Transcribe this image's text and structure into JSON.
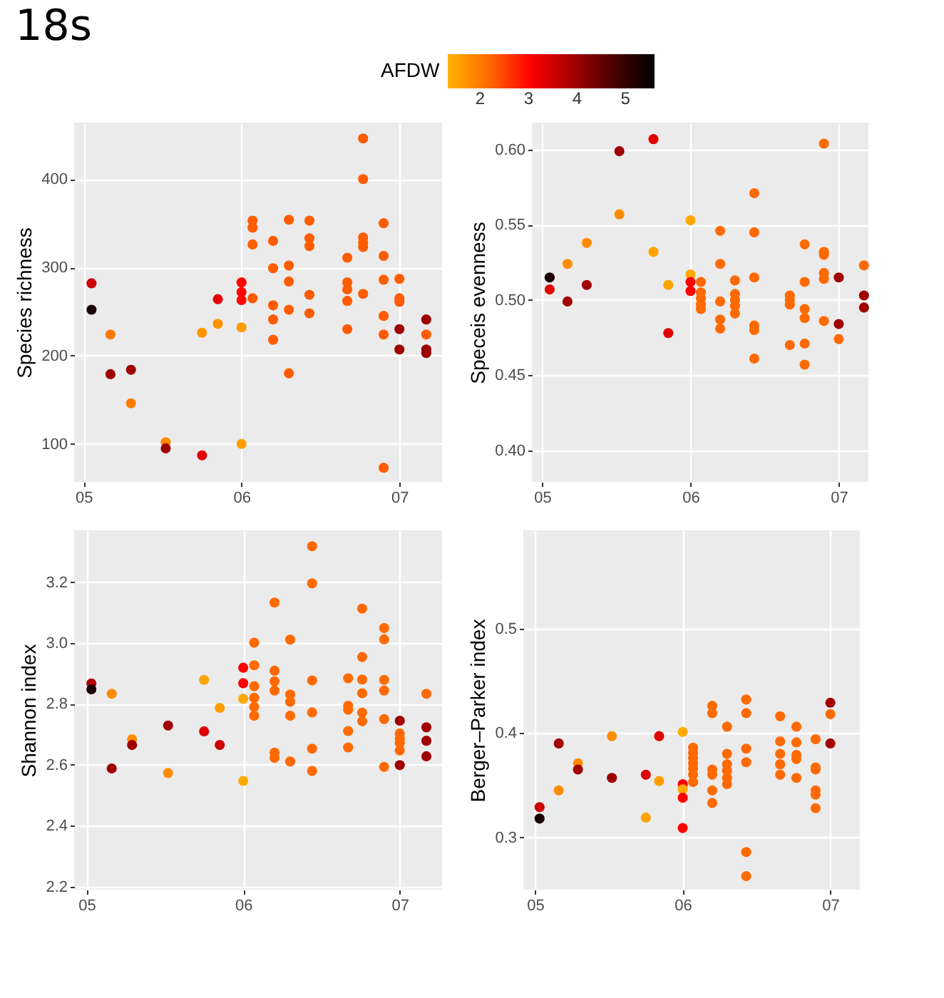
{
  "chart_data": [
    {
      "type": "scatter",
      "title": "18s",
      "clabel": "AFDW",
      "clim": [
        1.33,
        5.6
      ],
      "cticks": [
        2,
        3,
        4,
        5
      ],
      "ylabel": "Species richness",
      "marker": "circle",
      "grid": true,
      "xlim": [
        4.94,
        7.27
      ],
      "xticks": [
        {
          "value": 5,
          "label": "05"
        },
        {
          "value": 6,
          "label": "06"
        },
        {
          "value": 7,
          "label": "07"
        }
      ],
      "ylim": [
        57,
        464
      ],
      "yticks": [
        100,
        200,
        300,
        400
      ],
      "x": [
        5.05,
        5.05,
        5.17,
        5.17,
        5.3,
        5.3,
        5.52,
        5.52,
        5.75,
        5.75,
        5.85,
        5.85,
        6.0,
        6.0,
        6.0,
        6.0,
        6.0,
        6.07,
        6.07,
        6.07,
        6.07,
        6.2,
        6.2,
        6.2,
        6.2,
        6.2,
        6.3,
        6.3,
        6.3,
        6.3,
        6.3,
        6.43,
        6.43,
        6.43,
        6.43,
        6.43,
        6.67,
        6.67,
        6.67,
        6.67,
        6.67,
        6.77,
        6.77,
        6.77,
        6.77,
        6.77,
        6.77,
        6.9,
        6.9,
        6.9,
        6.9,
        6.9,
        6.9,
        7.0,
        7.0,
        7.0,
        7.0,
        7.0,
        7.17,
        7.17,
        7.17,
        7.17
      ],
      "values": [
        282,
        252,
        224,
        179,
        184,
        146,
        102,
        95,
        226,
        87,
        264,
        236,
        283,
        272,
        263,
        232,
        100,
        353,
        345,
        326,
        265,
        330,
        299,
        257,
        241,
        218,
        354,
        302,
        284,
        252,
        180,
        353,
        333,
        324,
        269,
        248,
        311,
        283,
        275,
        262,
        230,
        446,
        400,
        334,
        328,
        323,
        270,
        350,
        313,
        286,
        245,
        224,
        73,
        287,
        265,
        261,
        230,
        207,
        241,
        224,
        207,
        203
      ],
      "cvalues": [
        3.5,
        5.3,
        2.0,
        4.0,
        4.0,
        2.0,
        1.8,
        4.0,
        1.7,
        3.3,
        3.3,
        1.7,
        3.0,
        3.0,
        3.0,
        1.6,
        1.6,
        2.3,
        2.3,
        2.3,
        2.3,
        2.3,
        2.3,
        2.3,
        2.3,
        2.3,
        2.3,
        2.3,
        2.3,
        2.3,
        2.3,
        2.3,
        2.3,
        2.3,
        2.3,
        2.3,
        2.3,
        2.3,
        2.3,
        2.3,
        2.3,
        2.3,
        2.3,
        2.3,
        2.3,
        2.3,
        2.3,
        2.3,
        2.3,
        2.3,
        2.3,
        2.3,
        2.3,
        2.3,
        2.3,
        2.3,
        4.0,
        4.0,
        4.0,
        2.3,
        4.0,
        4.0
      ]
    },
    {
      "type": "scatter",
      "ylabel": "Speceis evenness",
      "marker": "circle",
      "grid": true,
      "xlim": [
        4.93,
        7.2
      ],
      "xticks": [
        {
          "value": 5,
          "label": "05"
        },
        {
          "value": 6,
          "label": "06"
        },
        {
          "value": 7,
          "label": "07"
        }
      ],
      "ylim": [
        0.379,
        0.618
      ],
      "yticks": [
        {
          "value": 0.4,
          "label": "0.40"
        },
        {
          "value": 0.45,
          "label": "0.45"
        },
        {
          "value": 0.5,
          "label": "0.50"
        },
        {
          "value": 0.55,
          "label": "0.55"
        },
        {
          "value": 0.6,
          "label": "0.60"
        }
      ],
      "x": [
        5.05,
        5.05,
        5.17,
        5.17,
        5.3,
        5.3,
        5.52,
        5.52,
        5.75,
        5.75,
        5.85,
        5.85,
        6.0,
        6.0,
        6.0,
        6.0,
        6.07,
        6.07,
        6.07,
        6.07,
        6.07,
        6.2,
        6.2,
        6.2,
        6.2,
        6.2,
        6.3,
        6.3,
        6.3,
        6.3,
        6.3,
        6.43,
        6.43,
        6.43,
        6.43,
        6.43,
        6.43,
        6.67,
        6.67,
        6.67,
        6.67,
        6.77,
        6.77,
        6.77,
        6.77,
        6.77,
        6.77,
        6.9,
        6.9,
        6.9,
        6.9,
        6.9,
        6.9,
        7.0,
        7.0,
        7.0,
        7.17,
        7.17,
        7.17
      ],
      "values": [
        0.515,
        0.507,
        0.524,
        0.499,
        0.538,
        0.51,
        0.599,
        0.557,
        0.607,
        0.532,
        0.51,
        0.478,
        0.553,
        0.517,
        0.512,
        0.506,
        0.512,
        0.505,
        0.501,
        0.497,
        0.494,
        0.546,
        0.524,
        0.499,
        0.487,
        0.481,
        0.513,
        0.504,
        0.5,
        0.496,
        0.491,
        0.571,
        0.545,
        0.515,
        0.483,
        0.48,
        0.461,
        0.503,
        0.5,
        0.497,
        0.47,
        0.537,
        0.512,
        0.494,
        0.488,
        0.471,
        0.457,
        0.604,
        0.532,
        0.53,
        0.518,
        0.514,
        0.486,
        0.515,
        0.484,
        0.474,
        0.523,
        0.503,
        0.495
      ],
      "colors": [
        "#1a0000",
        "#e00000",
        "#ff8c00",
        "#a00000",
        "#ff8c00",
        "#a00000",
        "#a00000",
        "#ff8c00",
        "#e00000",
        "#ffa300",
        "#ffa300",
        "#e00000",
        "#ffaa00",
        "#ffaa00",
        "#ff0000",
        "#ff0000",
        "#ff6a00",
        "#ff6a00",
        "#ff6a00",
        "#ff6a00",
        "#ff6a00",
        "#ff6a00",
        "#ff6a00",
        "#ff6a00",
        "#ff6a00",
        "#ff6a00",
        "#ff6a00",
        "#ff6a00",
        "#ff6a00",
        "#ff6a00",
        "#ff6a00",
        "#ff6a00",
        "#ff6a00",
        "#ff6a00",
        "#ff6a00",
        "#ff6a00",
        "#ff6a00",
        "#ff6a00",
        "#ff6a00",
        "#ff6a00",
        "#ff6a00",
        "#ff6a00",
        "#ff6a00",
        "#ff6a00",
        "#ff6a00",
        "#ff6a00",
        "#ff6a00",
        "#ff6a00",
        "#ff6a00",
        "#ff6a00",
        "#ff6a00",
        "#ff6a00",
        "#ff6a00",
        "#a00000",
        "#a00000",
        "#ff6a00",
        "#ff6a00",
        "#a00000",
        "#a00000"
      ]
    },
    {
      "type": "scatter",
      "ylabel": "Shannon index",
      "marker": "circle",
      "grid": true,
      "xlim": [
        4.92,
        7.27
      ],
      "xticks": [
        {
          "value": 5,
          "label": "05"
        },
        {
          "value": 6,
          "label": "06"
        },
        {
          "value": 7,
          "label": "07"
        }
      ],
      "ylim": [
        2.19,
        3.37
      ],
      "yticks": [
        {
          "value": 2.2,
          "label": "2.2"
        },
        {
          "value": 2.4,
          "label": "2.4"
        },
        {
          "value": 2.6,
          "label": "2.6"
        },
        {
          "value": 2.8,
          "label": "2.8"
        },
        {
          "value": 3.0,
          "label": "3.0"
        },
        {
          "value": 3.2,
          "label": "3.2"
        }
      ],
      "x": [
        5.03,
        5.03,
        5.16,
        5.16,
        5.29,
        5.29,
        5.52,
        5.52,
        5.75,
        5.75,
        5.85,
        5.85,
        6.0,
        6.0,
        6.0,
        6.0,
        6.07,
        6.07,
        6.07,
        6.07,
        6.07,
        6.07,
        6.2,
        6.2,
        6.2,
        6.2,
        6.2,
        6.2,
        6.3,
        6.3,
        6.3,
        6.3,
        6.3,
        6.44,
        6.44,
        6.44,
        6.44,
        6.44,
        6.44,
        6.67,
        6.67,
        6.67,
        6.67,
        6.67,
        6.76,
        6.76,
        6.76,
        6.76,
        6.76,
        6.76,
        6.9,
        6.9,
        6.9,
        6.9,
        6.9,
        6.9,
        7.0,
        7.0,
        7.0,
        7.0,
        7.0,
        7.0,
        7.17,
        7.17,
        7.17,
        7.17
      ],
      "values": [
        2.867,
        2.848,
        2.833,
        2.588,
        2.684,
        2.665,
        2.729,
        2.573,
        2.879,
        2.71,
        2.787,
        2.665,
        2.919,
        2.868,
        2.817,
        2.547,
        3.001,
        2.927,
        2.858,
        2.82,
        2.79,
        2.761,
        3.133,
        2.909,
        2.874,
        2.844,
        2.64,
        2.623,
        3.011,
        2.831,
        2.807,
        2.761,
        2.611,
        3.318,
        3.196,
        2.877,
        2.772,
        2.653,
        2.58,
        2.884,
        2.794,
        2.781,
        2.711,
        2.657,
        3.113,
        2.954,
        2.88,
        2.835,
        2.771,
        2.743,
        3.049,
        3.012,
        2.879,
        2.844,
        2.75,
        2.593,
        2.745,
        2.703,
        2.685,
        2.672,
        2.647,
        2.599,
        2.833,
        2.723,
        2.679,
        2.628
      ],
      "colors": [
        "#b00000",
        "#1a0000",
        "#ff8c00",
        "#a00000",
        "#ff8c00",
        "#a00000",
        "#a00000",
        "#ff8c00",
        "#ffa300",
        "#e00000",
        "#ff9c00",
        "#cc0000",
        "#ff0000",
        "#ff0000",
        "#ffaa00",
        "#ffaa00",
        "#ff6a00",
        "#ff6a00",
        "#ff6a00",
        "#ff6a00",
        "#ff6a00",
        "#ff6a00",
        "#ff6a00",
        "#ff6a00",
        "#ff6a00",
        "#ff6a00",
        "#ff6a00",
        "#ff6a00",
        "#ff6a00",
        "#ff6a00",
        "#ff6a00",
        "#ff6a00",
        "#ff6a00",
        "#ff6a00",
        "#ff6a00",
        "#ff6a00",
        "#ff6a00",
        "#ff6a00",
        "#ff6a00",
        "#ff6a00",
        "#ff6a00",
        "#ff6a00",
        "#ff6a00",
        "#ff6a00",
        "#ff6a00",
        "#ff6a00",
        "#ff6a00",
        "#ff6a00",
        "#ff6a00",
        "#ff6a00",
        "#ff6a00",
        "#ff6a00",
        "#ff6a00",
        "#ff6a00",
        "#ff6a00",
        "#ff6a00",
        "#a00000",
        "#ff6a00",
        "#ff6a00",
        "#ff6a00",
        "#ff6a00",
        "#a00000",
        "#ff6a00",
        "#a00000",
        "#a00000",
        "#a00000"
      ]
    },
    {
      "type": "scatter",
      "ylabel": "Berger–Parker index",
      "marker": "circle",
      "grid": true,
      "xlim": [
        4.92,
        7.2
      ],
      "xticks": [
        {
          "value": 5,
          "label": "05"
        },
        {
          "value": 6,
          "label": "06"
        },
        {
          "value": 7,
          "label": "07"
        }
      ],
      "ylim": [
        0.25,
        0.594
      ],
      "yticks": [
        0.3,
        0.4,
        0.5
      ],
      "x": [
        5.03,
        5.03,
        5.16,
        5.16,
        5.29,
        5.29,
        5.52,
        5.52,
        5.75,
        5.75,
        5.84,
        5.84,
        6.0,
        6.0,
        6.0,
        6.0,
        6.0,
        6.07,
        6.07,
        6.07,
        6.07,
        6.07,
        6.07,
        6.07,
        6.2,
        6.2,
        6.2,
        6.2,
        6.2,
        6.2,
        6.3,
        6.3,
        6.3,
        6.3,
        6.3,
        6.3,
        6.43,
        6.43,
        6.43,
        6.43,
        6.43,
        6.43,
        6.66,
        6.66,
        6.66,
        6.66,
        6.66,
        6.77,
        6.77,
        6.77,
        6.77,
        6.77,
        6.9,
        6.9,
        6.9,
        6.9,
        6.9,
        6.9,
        7.0,
        7.0,
        7.0
      ],
      "values": [
        0.329,
        0.318,
        0.39,
        0.345,
        0.371,
        0.365,
        0.397,
        0.357,
        0.36,
        0.319,
        0.397,
        0.354,
        0.401,
        0.351,
        0.346,
        0.338,
        0.309,
        0.386,
        0.381,
        0.376,
        0.371,
        0.366,
        0.36,
        0.353,
        0.426,
        0.419,
        0.365,
        0.36,
        0.345,
        0.333,
        0.406,
        0.38,
        0.37,
        0.364,
        0.357,
        0.351,
        0.432,
        0.419,
        0.385,
        0.372,
        0.286,
        0.263,
        0.416,
        0.392,
        0.38,
        0.37,
        0.36,
        0.406,
        0.391,
        0.379,
        0.375,
        0.357,
        0.394,
        0.367,
        0.365,
        0.345,
        0.341,
        0.328,
        0.429,
        0.418,
        0.39
      ],
      "colors": [
        "#cc0000",
        "#1a0000",
        "#a00000",
        "#ff8c00",
        "#ff8c00",
        "#a00000",
        "#ff8c00",
        "#a00000",
        "#e00000",
        "#ffa300",
        "#e00000",
        "#ff9c00",
        "#ffaa00",
        "#ff0000",
        "#ffaa00",
        "#ff0000",
        "#ff0000",
        "#ff6a00",
        "#ff6a00",
        "#ff6a00",
        "#ff6a00",
        "#ff6a00",
        "#ff6a00",
        "#ff6a00",
        "#ff6a00",
        "#ff6a00",
        "#ff6a00",
        "#ff6a00",
        "#ff6a00",
        "#ff6a00",
        "#ff6a00",
        "#ff6a00",
        "#ff6a00",
        "#ff6a00",
        "#ff6a00",
        "#ff6a00",
        "#ff6a00",
        "#ff6a00",
        "#ff6a00",
        "#ff6a00",
        "#ff6a00",
        "#ff6a00",
        "#ff6a00",
        "#ff6a00",
        "#ff6a00",
        "#ff6a00",
        "#ff6a00",
        "#ff6a00",
        "#ff6a00",
        "#ff6a00",
        "#ff6a00",
        "#ff6a00",
        "#ff6a00",
        "#ff6a00",
        "#ff6a00",
        "#ff6a00",
        "#ff6a00",
        "#ff6a00",
        "#a00000",
        "#ff6a00",
        "#a00000"
      ]
    }
  ]
}
